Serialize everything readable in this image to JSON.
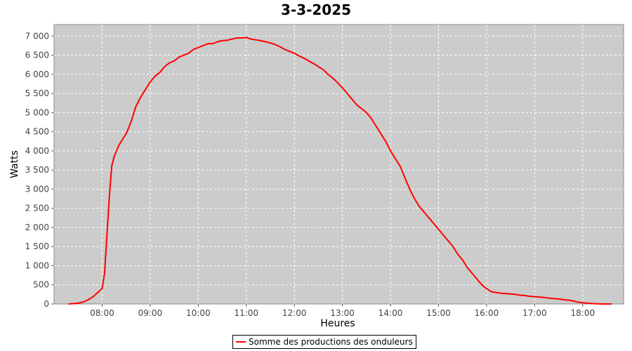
{
  "chart_data": {
    "type": "line",
    "title": "3-3-2025",
    "xlabel": "Heures",
    "ylabel": "Watts",
    "x_unit": "hours",
    "xlim": [
      7.0,
      18.85
    ],
    "ylim": [
      0,
      7300
    ],
    "x_ticks": [
      "08:00",
      "09:00",
      "10:00",
      "11:00",
      "12:00",
      "13:00",
      "14:00",
      "15:00",
      "16:00",
      "17:00",
      "18:00"
    ],
    "y_ticks": [
      "0",
      "500",
      "1 000",
      "1 500",
      "2 000",
      "2 500",
      "3 000",
      "3 500",
      "4 000",
      "4 500",
      "5 000",
      "5 500",
      "6 000",
      "6 500",
      "7 000"
    ],
    "grid": true,
    "background": "#cccccc",
    "legend_position": "bottom-center",
    "series": [
      {
        "name": "Somme des productions des onduleurs",
        "color": "#ff0000",
        "x": [
          7.3,
          7.5,
          7.6,
          7.7,
          7.8,
          7.9,
          8.0,
          8.05,
          8.1,
          8.15,
          8.2,
          8.25,
          8.3,
          8.35,
          8.4,
          8.5,
          8.6,
          8.7,
          8.8,
          8.9,
          9.0,
          9.1,
          9.2,
          9.3,
          9.4,
          9.5,
          9.6,
          9.7,
          9.8,
          9.9,
          10.0,
          10.1,
          10.2,
          10.3,
          10.4,
          10.5,
          10.6,
          10.7,
          10.8,
          10.9,
          11.0,
          11.1,
          11.2,
          11.3,
          11.4,
          11.5,
          11.6,
          11.7,
          11.8,
          11.9,
          12.0,
          12.1,
          12.2,
          12.3,
          12.4,
          12.5,
          12.6,
          12.7,
          12.8,
          12.9,
          13.0,
          13.1,
          13.2,
          13.3,
          13.4,
          13.5,
          13.6,
          13.7,
          13.8,
          13.9,
          14.0,
          14.1,
          14.2,
          14.3,
          14.4,
          14.5,
          14.6,
          14.7,
          14.8,
          14.9,
          15.0,
          15.1,
          15.2,
          15.3,
          15.4,
          15.5,
          15.6,
          15.7,
          15.8,
          15.9,
          16.0,
          16.1,
          16.2,
          16.3,
          16.4,
          16.5,
          16.6,
          16.7,
          16.8,
          16.9,
          17.0,
          17.1,
          17.2,
          17.3,
          17.4,
          17.5,
          17.6,
          17.7,
          17.8,
          17.9,
          18.0,
          18.1,
          18.2,
          18.3,
          18.4,
          18.5,
          18.6
        ],
        "y": [
          0,
          20,
          50,
          100,
          180,
          290,
          400,
          800,
          1800,
          2800,
          3600,
          3850,
          4000,
          4150,
          4250,
          4450,
          4750,
          5150,
          5400,
          5600,
          5800,
          5950,
          6050,
          6200,
          6300,
          6350,
          6450,
          6500,
          6550,
          6650,
          6700,
          6750,
          6800,
          6800,
          6850,
          6880,
          6890,
          6920,
          6950,
          6950,
          6960,
          6920,
          6900,
          6880,
          6850,
          6820,
          6780,
          6720,
          6650,
          6600,
          6550,
          6480,
          6420,
          6350,
          6280,
          6200,
          6120,
          6000,
          5900,
          5780,
          5650,
          5500,
          5350,
          5200,
          5100,
          5000,
          4850,
          4650,
          4450,
          4250,
          4000,
          3800,
          3600,
          3300,
          3000,
          2750,
          2550,
          2400,
          2250,
          2100,
          1950,
          1800,
          1650,
          1500,
          1300,
          1150,
          950,
          800,
          650,
          500,
          400,
          320,
          300,
          280,
          270,
          260,
          250,
          230,
          220,
          200,
          190,
          180,
          170,
          150,
          140,
          130,
          110,
          100,
          80,
          50,
          30,
          20,
          10,
          5,
          0,
          0,
          0
        ]
      }
    ]
  }
}
